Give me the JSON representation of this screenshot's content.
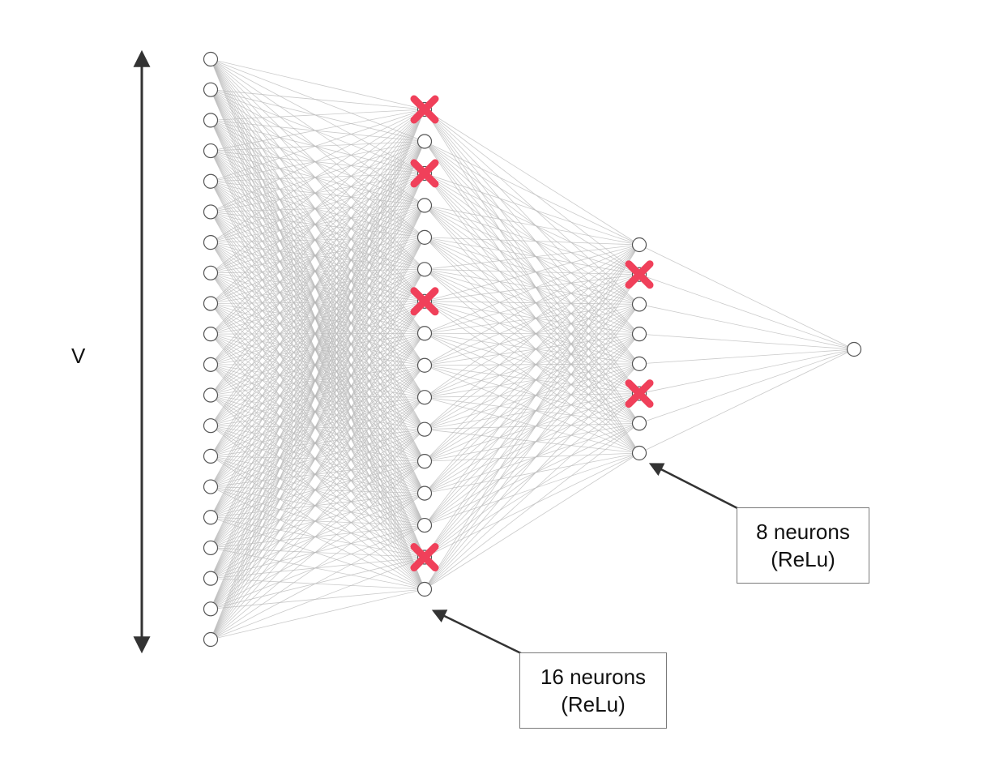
{
  "input_axis_label": "V",
  "layers": [
    {
      "name": "input",
      "node_count": 20,
      "dropped": []
    },
    {
      "name": "hidden1",
      "node_count": 16,
      "dropped": [
        0,
        2,
        6,
        14
      ]
    },
    {
      "name": "hidden2",
      "node_count": 8,
      "dropped": [
        1,
        5
      ]
    },
    {
      "name": "output",
      "node_count": 1,
      "dropped": []
    }
  ],
  "callouts": {
    "hidden1": {
      "line1": "16 neurons",
      "line2": "(ReLu)"
    },
    "hidden2": {
      "line1": "8 neurons",
      "line2": "(ReLu)"
    }
  },
  "colors": {
    "edge": "#b8b8b8",
    "node_stroke": "#555555",
    "dropout_mark": "#f0405a",
    "arrow": "#333333"
  }
}
